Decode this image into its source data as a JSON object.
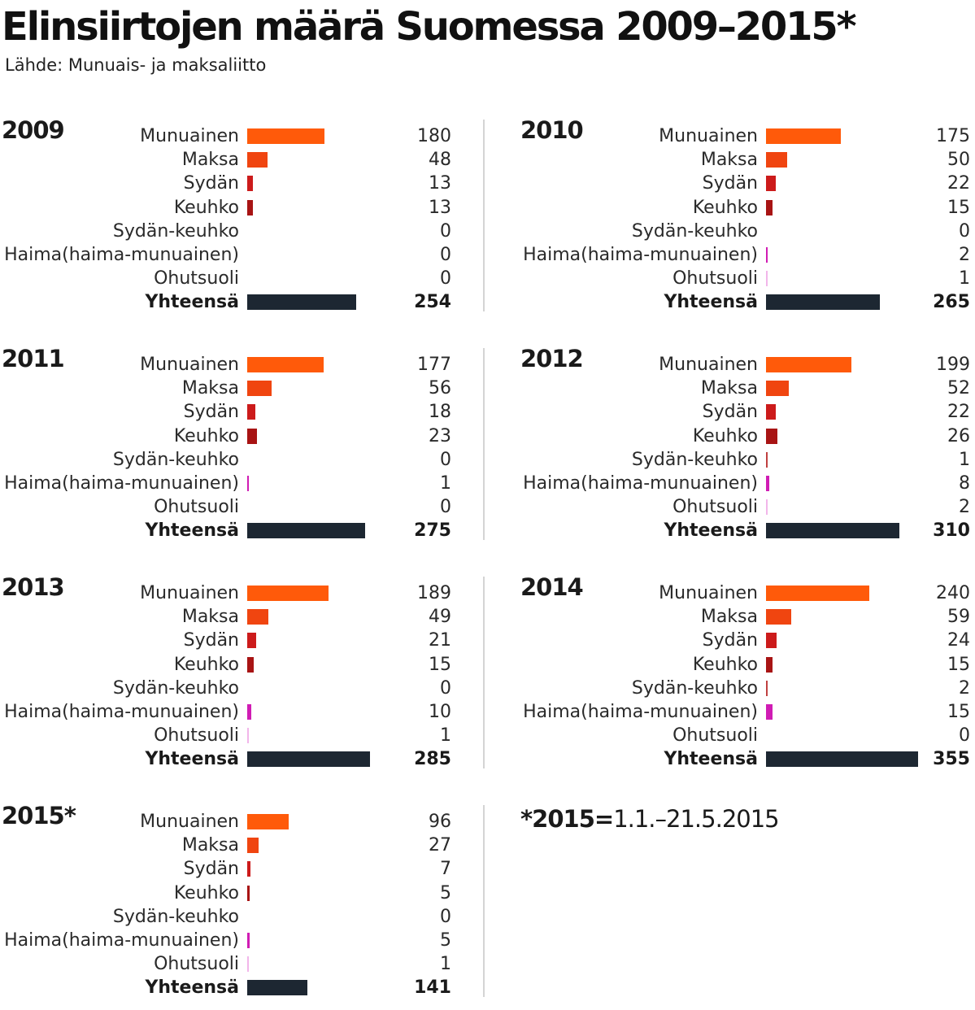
{
  "header": {
    "title": "Elinsiirtojen määrä Suomessa 2009–2015*",
    "source": "Lähde: Munuais- ja maksaliitto"
  },
  "footnote": {
    "bold": "*2015=",
    "rest": "1.1.–21.5.2015"
  },
  "colors": {
    "munuainen": "#ff5a0a",
    "maksa": "#f04510",
    "sydan": "#cc1b1b",
    "keuhko": "#a81414",
    "sydan_keuhko": "#c04040",
    "haima": "#d01cb4",
    "ohutsuoli": "#f2b6ea",
    "total": "#1d2732",
    "divider": "#d4d4d4"
  },
  "chart_data": [
    {
      "type": "bar",
      "orientation": "horizontal",
      "title": "2009",
      "categories": [
        "Munuainen",
        "Maksa",
        "Sydän",
        "Keuhko",
        "Sydän-keuhko",
        "Haima(haima-munuainen)",
        "Ohutsuoli",
        "Yhteensä"
      ],
      "values": [
        180,
        48,
        13,
        13,
        0,
        0,
        0,
        254
      ]
    },
    {
      "type": "bar",
      "orientation": "horizontal",
      "title": "2010",
      "categories": [
        "Munuainen",
        "Maksa",
        "Sydän",
        "Keuhko",
        "Sydän-keuhko",
        "Haima(haima-munuainen)",
        "Ohutsuoli",
        "Yhteensä"
      ],
      "values": [
        175,
        50,
        22,
        15,
        0,
        2,
        1,
        265
      ]
    },
    {
      "type": "bar",
      "orientation": "horizontal",
      "title": "2011",
      "categories": [
        "Munuainen",
        "Maksa",
        "Sydän",
        "Keuhko",
        "Sydän-keuhko",
        "Haima(haima-munuainen)",
        "Ohutsuoli",
        "Yhteensä"
      ],
      "values": [
        177,
        56,
        18,
        23,
        0,
        1,
        0,
        275
      ]
    },
    {
      "type": "bar",
      "orientation": "horizontal",
      "title": "2012",
      "categories": [
        "Munuainen",
        "Maksa",
        "Sydän",
        "Keuhko",
        "Sydän-keuhko",
        "Haima(haima-munuainen)",
        "Ohutsuoli",
        "Yhteensä"
      ],
      "values": [
        199,
        52,
        22,
        26,
        1,
        8,
        2,
        310
      ]
    },
    {
      "type": "bar",
      "orientation": "horizontal",
      "title": "2013",
      "categories": [
        "Munuainen",
        "Maksa",
        "Sydän",
        "Keuhko",
        "Sydän-keuhko",
        "Haima(haima-munuainen)",
        "Ohutsuoli",
        "Yhteensä"
      ],
      "values": [
        189,
        49,
        21,
        15,
        0,
        10,
        1,
        285
      ]
    },
    {
      "type": "bar",
      "orientation": "horizontal",
      "title": "2014",
      "categories": [
        "Munuainen",
        "Maksa",
        "Sydän",
        "Keuhko",
        "Sydän-keuhko",
        "Haima(haima-munuainen)",
        "Ohutsuoli",
        "Yhteensä"
      ],
      "values": [
        240,
        59,
        24,
        15,
        2,
        15,
        0,
        355
      ]
    },
    {
      "type": "bar",
      "orientation": "horizontal",
      "title": "2015*",
      "categories": [
        "Munuainen",
        "Maksa",
        "Sydän",
        "Keuhko",
        "Sydän-keuhko",
        "Haima(haima-munuainen)",
        "Ohutsuoli",
        "Yhteensä"
      ],
      "values": [
        96,
        27,
        7,
        5,
        0,
        5,
        1,
        141
      ]
    }
  ]
}
